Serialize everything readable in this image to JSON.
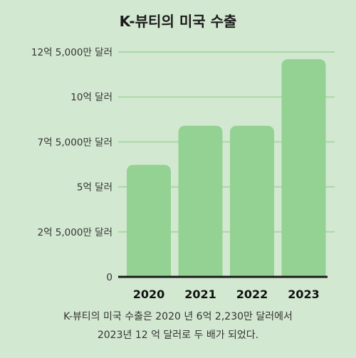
{
  "chart_data": {
    "type": "bar",
    "title": "K-뷰티의 미국 수출",
    "categories": [
      "2020",
      "2021",
      "2022",
      "2023"
    ],
    "values": [
      622300000,
      840000000,
      840000000,
      1210000000
    ],
    "ylim": [
      0,
      1250000000
    ],
    "yticks": [
      0,
      250000000,
      500000000,
      750000000,
      1000000000,
      1250000000
    ],
    "ytick_labels": [
      "0",
      "2억 5,000만 달러",
      "5억 달러",
      "7억 5,000만 달러",
      "10억 달러",
      "12억 5,000만 달러"
    ],
    "xlabel": "",
    "ylabel": "",
    "grid": true,
    "colors": {
      "bar": "#93d293",
      "grid": "#a9d8a6",
      "axis": "#1a1a1a",
      "background": "#d3e8d1"
    }
  },
  "caption": {
    "line1": "K-뷰티의 미국 수출은 2020 년 6억 2,230만 달러에서",
    "line2": "2023년 12 억 달러로 두 배가 되었다."
  }
}
